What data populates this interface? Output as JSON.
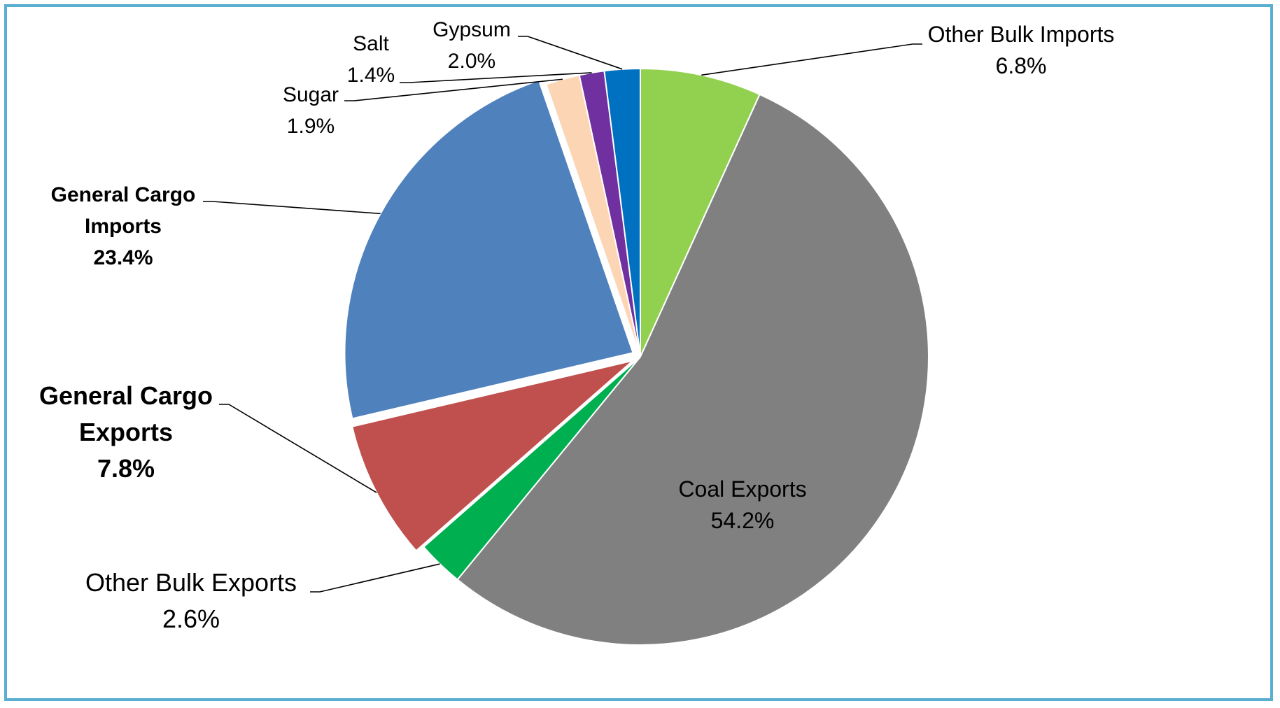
{
  "chart_data": {
    "type": "pie",
    "title": "",
    "slices": [
      {
        "label": "Other Bulk Imports",
        "value": 6.8,
        "value_label": "6.8%",
        "color": "#92d050"
      },
      {
        "label": "Coal Exports",
        "value": 54.2,
        "value_label": "54.2%",
        "color": "#808080"
      },
      {
        "label": "Other Bulk Exports",
        "value": 2.6,
        "value_label": "2.6%",
        "color": "#00b050"
      },
      {
        "label": "General Cargo Exports",
        "value": 7.8,
        "value_label": "7.8%",
        "color": "#c0504d",
        "exploded": true
      },
      {
        "label": "General Cargo Imports",
        "value": 23.4,
        "value_label": "23.4%",
        "color": "#4f81bd",
        "exploded": true
      },
      {
        "label": "Sugar",
        "value": 1.9,
        "value_label": "1.9%",
        "color": "#fcd5b5"
      },
      {
        "label": "Salt",
        "value": 1.4,
        "value_label": "1.4%",
        "color": "#7030a0"
      },
      {
        "label": "Gypsum",
        "value": 2.0,
        "value_label": "2.0%",
        "color": "#0070c0"
      }
    ],
    "start_angle": "12 o'clock",
    "direction": "clockwise",
    "legend": "none (callout labels)"
  }
}
